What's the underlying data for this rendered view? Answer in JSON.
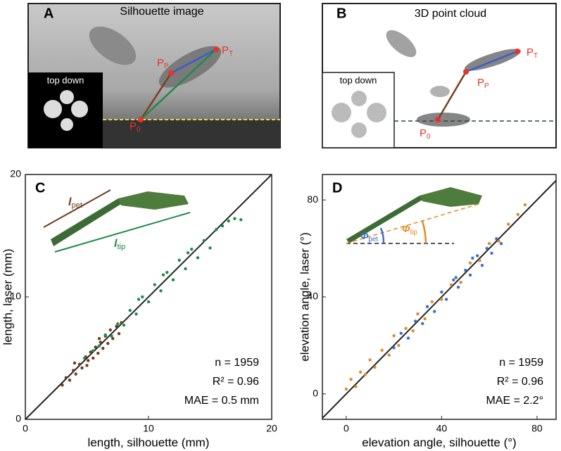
{
  "panel_a": {
    "label": "A",
    "title": "Silhouette image",
    "inset_label": "top down",
    "point_p": {
      "symbol": "P",
      "subscript": "P"
    },
    "point_t": {
      "symbol": "P",
      "subscript": "T"
    },
    "point_0": {
      "symbol": "P",
      "subscript": "0"
    }
  },
  "panel_b": {
    "label": "B",
    "title": "3D point cloud",
    "inset_label": "top down",
    "point_p": {
      "symbol": "P",
      "subscript": "P"
    },
    "point_t": {
      "symbol": "P",
      "subscript": "T"
    },
    "point_0": {
      "symbol": "P",
      "subscript": "0"
    }
  },
  "chart_data": [
    {
      "type": "scatter",
      "panel_label": "C",
      "x_label": "length, silhouette (mm)",
      "y_label": "length, laser (mm)",
      "xlim": [
        0,
        20
      ],
      "ylim": [
        0,
        20
      ],
      "xticks": [
        0,
        10,
        20
      ],
      "yticks": [
        0,
        10,
        20
      ],
      "stats": [
        "n = 1959",
        "R² = 0.96",
        "MAE = 0.5 mm"
      ],
      "inset": {
        "a": {
          "symbol": "l",
          "subscript": "pet"
        },
        "b": {
          "symbol": "l",
          "subscript": "tip"
        }
      },
      "series": [
        {
          "color": "#6b3d1e",
          "x": [
            3.0,
            3.3,
            3.6,
            3.9,
            4.1,
            4.4,
            4.6,
            4.9,
            5.1,
            5.3,
            5.5,
            5.7,
            5.9,
            6.1,
            6.3,
            6.5,
            6.7,
            6.9,
            7.1,
            7.4,
            7.6,
            4.0,
            5.0,
            6.0,
            7.8
          ],
          "values": [
            2.8,
            3.4,
            3.2,
            4.0,
            3.7,
            4.5,
            4.2,
            5.1,
            4.8,
            5.5,
            5.0,
            5.9,
            5.4,
            6.3,
            5.8,
            6.8,
            6.2,
            7.3,
            6.6,
            7.6,
            7.0,
            4.6,
            4.4,
            6.6,
            7.9
          ]
        },
        {
          "color": "#1f8a4c",
          "x": [
            4.8,
            5.5,
            6.0,
            6.5,
            7.0,
            7.5,
            8.0,
            8.5,
            9.0,
            9.5,
            10.0,
            10.5,
            11.0,
            11.5,
            12.0,
            12.5,
            13.0,
            13.5,
            14.0,
            14.5,
            15.0,
            15.5,
            16.0,
            16.5,
            17.0,
            17.5,
            9.2,
            11.2,
            13.2
          ],
          "values": [
            5.0,
            5.6,
            6.0,
            6.9,
            6.8,
            7.8,
            7.7,
            8.9,
            8.6,
            10.0,
            9.6,
            11.0,
            10.5,
            12.0,
            11.4,
            13.0,
            12.3,
            13.9,
            13.2,
            14.6,
            14.0,
            15.5,
            15.8,
            16.2,
            16.4,
            16.3,
            9.8,
            11.8,
            13.6
          ]
        }
      ]
    },
    {
      "type": "scatter",
      "panel_label": "D",
      "x_label": "elevation angle, silhouette (°)",
      "y_label": "elevation angle, laser (°)",
      "xlim": [
        -10,
        88
      ],
      "ylim": [
        -10.5,
        90.5
      ],
      "xticks": [
        0,
        40,
        80
      ],
      "yticks": [
        0,
        40,
        80
      ],
      "stats": [
        "n = 1959",
        "R² = 0.96",
        "MAE = 2.2°"
      ],
      "inset": {
        "a": {
          "symbol": "Φ",
          "subscript": "pet"
        },
        "b": {
          "symbol": "Φ",
          "subscript": "tip"
        }
      },
      "series": [
        {
          "color": "#e08a2a",
          "x": [
            0,
            2,
            4,
            6,
            8,
            10,
            12,
            15,
            18,
            20,
            22,
            25,
            28,
            30,
            33,
            36,
            40,
            44,
            48,
            52,
            56,
            60,
            64,
            68,
            72,
            75
          ],
          "values": [
            2,
            6,
            3,
            9,
            8,
            14,
            11,
            18,
            16,
            24,
            20,
            27,
            26,
            33,
            31,
            38,
            39,
            45,
            46,
            54,
            55,
            62,
            63,
            70,
            74,
            78
          ]
        },
        {
          "color": "#3e6fc4",
          "x": [
            20,
            23,
            26,
            29,
            32,
            34,
            37,
            40,
            42,
            45,
            47,
            50,
            52,
            55,
            57,
            59,
            61,
            63,
            65,
            46,
            53
          ],
          "values": [
            19,
            25,
            23,
            30,
            29,
            36,
            34,
            42,
            39,
            47,
            44,
            51,
            49,
            57,
            53,
            60,
            58,
            64,
            62,
            48,
            56
          ]
        }
      ]
    }
  ]
}
